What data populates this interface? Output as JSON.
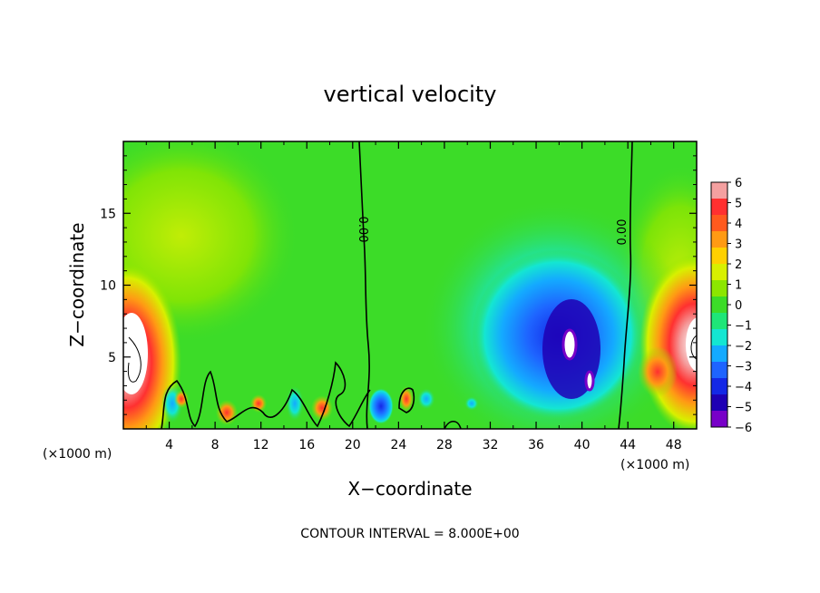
{
  "chart_data": {
    "type": "heatmap",
    "title": "vertical velocity",
    "xlabel": "X−coordinate",
    "ylabel": "Z−coordinate",
    "x_unit_left": "(×1000 m)",
    "x_unit_right": "(×1000 m)",
    "footer": "CONTOUR INTERVAL = 8.000E+00",
    "xlim": [
      0,
      50
    ],
    "ylim": [
      0,
      20
    ],
    "x_ticks": [
      4,
      8,
      12,
      16,
      20,
      24,
      28,
      32,
      36,
      40,
      44,
      48
    ],
    "x_tick_labels": [
      "4",
      "8",
      "12",
      "16",
      "20",
      "24",
      "28",
      "32",
      "36",
      "40",
      "44",
      "48"
    ],
    "y_ticks": [
      5,
      10,
      15
    ],
    "y_tick_labels": [
      "5",
      "10",
      "15"
    ],
    "contour_labels": [
      "0.00",
      "0.00"
    ],
    "colorbar": {
      "min": -6,
      "max": 6,
      "labels": [
        "6",
        "5",
        "4",
        "3",
        "2",
        "1",
        "0",
        "−1",
        "−2",
        "−3",
        "−4",
        "−5",
        "−6"
      ],
      "colors": [
        "#f4a0a0",
        "#ff3030",
        "#ff5a1e",
        "#ff9a14",
        "#ffd000",
        "#d8f000",
        "#8ce600",
        "#3cdc28",
        "#1ee678",
        "#14e6d2",
        "#14aaff",
        "#1e64ff",
        "#1428e6",
        "#1e00b4",
        "#7800c8"
      ]
    }
  }
}
